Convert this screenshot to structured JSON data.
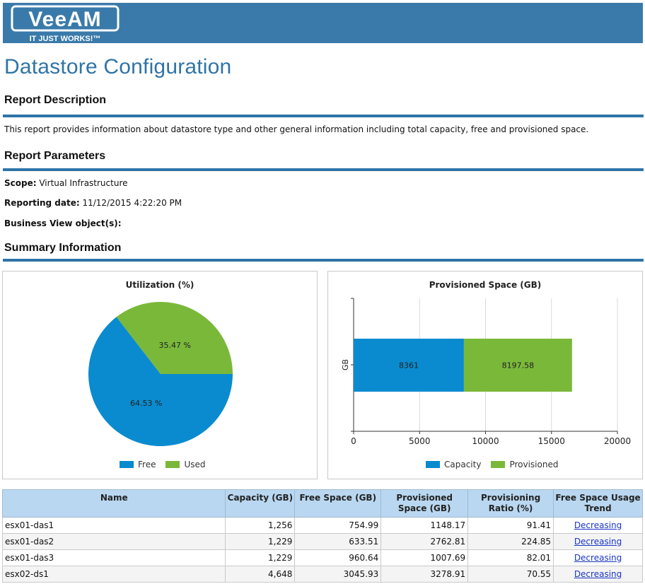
{
  "header": {
    "logo_text": "VeeAM",
    "logo_tagline": "IT JUST WORKS!"
  },
  "page_title": "Datastore Configuration",
  "sections": {
    "description_title": "Report Description",
    "description_text": "This report provides information about datastore type and other general information including total capacity, free and provisioned space.",
    "parameters_title": "Report Parameters",
    "summary_title": "Summary Information"
  },
  "parameters": {
    "scope_label": "Scope:",
    "scope_value": "Virtual Infrastructure",
    "date_label": "Reporting date:",
    "date_value": "11/12/2015 4:22:20 PM",
    "bv_label": "Business View object(s):"
  },
  "colors": {
    "blue": "#0a8bcf",
    "green": "#7ab83a",
    "accent": "#2f74a8"
  },
  "chart_data": [
    {
      "type": "pie",
      "title": "Utilization (%)",
      "categories": [
        "Free",
        "Used"
      ],
      "values": [
        64.53,
        35.47
      ],
      "labels": [
        "64.53 %",
        "35.47 %"
      ],
      "legend": "bottom"
    },
    {
      "type": "bar",
      "orientation": "horizontal",
      "stacked": true,
      "title": "Provisioned Space (GB)",
      "categories": [
        "GB"
      ],
      "series": [
        {
          "name": "Capacity",
          "values": [
            8361
          ],
          "label": "8361"
        },
        {
          "name": "Provisioned",
          "values": [
            8197.58
          ],
          "label": "8197.58"
        }
      ],
      "xlim": [
        0,
        20000
      ],
      "xticks": [
        "0",
        "5000",
        "10000",
        "15000",
        "20000"
      ],
      "grid": true,
      "legend": "bottom"
    }
  ],
  "table": {
    "headers": [
      "Name",
      "Capacity (GB)",
      "Free Space (GB)",
      "Provisioned Space (GB)",
      "Provisioning Ratio (%)",
      "Free Space Usage Trend"
    ],
    "rows": [
      [
        "esx01-das1",
        "1,256",
        "754.99",
        "1148.17",
        "91.41",
        "Decreasing"
      ],
      [
        "esx01-das2",
        "1,229",
        "633.51",
        "2762.81",
        "224.85",
        "Decreasing"
      ],
      [
        "esx01-das3",
        "1,229",
        "960.64",
        "1007.69",
        "82.01",
        "Decreasing"
      ],
      [
        "esx02-ds1",
        "4,648",
        "3045.93",
        "3278.91",
        "70.55",
        "Decreasing"
      ]
    ]
  }
}
